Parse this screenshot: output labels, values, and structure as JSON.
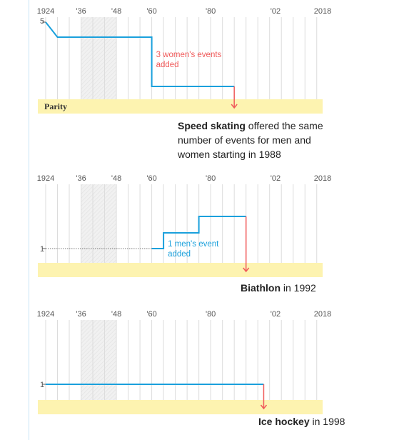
{
  "colors": {
    "men_line": "#1aa0dc",
    "women_line": "#f05a5a",
    "parity_band": "#fdf3b0",
    "grid": "#dcdcdc",
    "war_gap": "#eeeeee",
    "axis_text": "#555555",
    "dotted": "#777777"
  },
  "chart_data": [
    {
      "type": "line",
      "sport": "Speed skating",
      "x_tick_labels": [
        "1924",
        "'36",
        "'48",
        "'60",
        "'80",
        "'02",
        "2018"
      ],
      "x_tick_years": [
        1924,
        1936,
        1948,
        1960,
        1980,
        2002,
        2018
      ],
      "xlim": [
        1924,
        2018
      ],
      "y_tick_label": "5",
      "y_tick_value": 5,
      "ylim": [
        0,
        5
      ],
      "war_gap": [
        1936,
        1948
      ],
      "band_label": "Parity",
      "series": [
        {
          "x": [
            1924,
            1928,
            1960,
            1960,
            1988
          ],
          "y": [
            5,
            4,
            4,
            1,
            1
          ]
        }
      ],
      "parity_year": 1988,
      "annotation": {
        "lines": [
          "3 women's events",
          "added"
        ],
        "year": 1960
      },
      "caption": {
        "bold": "Speed skating",
        "rest": " offered the same",
        "lines": [
          "number of events for men and",
          "women starting in 1988"
        ]
      }
    },
    {
      "type": "line",
      "sport": "Biathlon",
      "x_tick_labels": [
        "1924",
        "'36",
        "'48",
        "'60",
        "'80",
        "'02",
        "2018"
      ],
      "x_tick_years": [
        1924,
        1936,
        1948,
        1960,
        1980,
        2002,
        2018
      ],
      "xlim": [
        1924,
        2018
      ],
      "y_tick_label": "1",
      "y_tick_value": 1,
      "war_gap": [
        1936,
        1948
      ],
      "series": [
        {
          "x": [
            1960,
            1964,
            1964,
            1976,
            1976,
            1992
          ],
          "y": [
            1,
            1,
            2,
            2,
            3,
            3
          ]
        }
      ],
      "dotted_until": 1960,
      "parity_year": 1992,
      "annotation": {
        "lines": [
          "1 men's event",
          "added"
        ],
        "year": 1964
      },
      "caption": {
        "bold": "Biathlon",
        "rest": " in 1992"
      }
    },
    {
      "type": "line",
      "sport": "Ice hockey",
      "x_tick_labels": [
        "1924",
        "'36",
        "'48",
        "'60",
        "'80",
        "'02",
        "2018"
      ],
      "x_tick_years": [
        1924,
        1936,
        1948,
        1960,
        1980,
        2002,
        2018
      ],
      "xlim": [
        1924,
        2018
      ],
      "y_tick_label": "1",
      "y_tick_value": 1,
      "war_gap": [
        1936,
        1948
      ],
      "series": [
        {
          "x": [
            1924,
            1998
          ],
          "y": [
            1,
            1
          ]
        }
      ],
      "parity_year": 1998,
      "caption": {
        "bold": "Ice hockey",
        "rest": " in 1998"
      }
    }
  ]
}
